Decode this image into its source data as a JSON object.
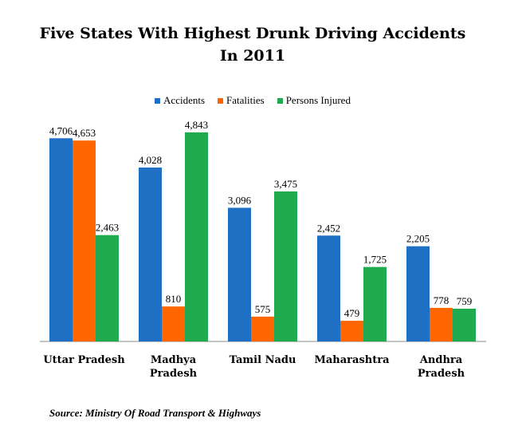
{
  "chart_data": {
    "type": "bar",
    "title": [
      "Five States With Highest Drunk Driving Accidents",
      "In 2011"
    ],
    "categories": [
      [
        "Uttar Pradesh"
      ],
      [
        "Madhya",
        "Pradesh"
      ],
      [
        "Tamil Nadu"
      ],
      [
        "Maharashtra"
      ],
      [
        "Andhra",
        "Pradesh"
      ]
    ],
    "series": [
      {
        "name": "Accidents",
        "values": [
          4706,
          4028,
          3096,
          2452,
          2205
        ],
        "labels": [
          "4,706",
          "4,028",
          "3,096",
          "2,452",
          "2,205"
        ],
        "color": "#1f6fc5"
      },
      {
        "name": "Fatalities",
        "values": [
          4653,
          810,
          575,
          479,
          778
        ],
        "labels": [
          "4,653",
          "810",
          "575",
          "479",
          "778"
        ],
        "color": "#ff6600"
      },
      {
        "name": "Persons Injured",
        "values": [
          2463,
          4843,
          3475,
          1725,
          759
        ],
        "labels": [
          "2,463",
          "4,843",
          "3,475",
          "1,725",
          "759"
        ],
        "color": "#1faa50"
      }
    ],
    "ylim": [
      0,
      5000
    ],
    "grid": false,
    "legend_position": "top-center",
    "source": "Source: Ministry Of Road Transport & Highways"
  }
}
